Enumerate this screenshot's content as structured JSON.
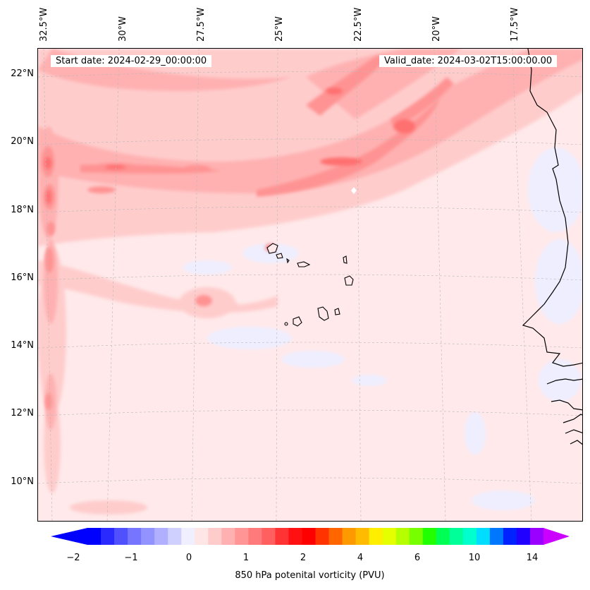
{
  "header": {
    "start_date": "Start date: 2024-02-29_00:00:00",
    "valid_date": "Valid_date: 2024-03-02T15:00:00.00"
  },
  "map": {
    "longitude_labels": [
      "32.5°W",
      "30°W",
      "27.5°W",
      "25°W",
      "22.5°W",
      "20°W",
      "17.5°W"
    ],
    "latitude_labels": [
      "22°N",
      "20°N",
      "18°N",
      "16°N",
      "14°N",
      "12°N",
      "10°N"
    ],
    "background_color": "#ffe9ea"
  },
  "colorbar": {
    "label": "850 hPa potenital vorticity (PVU)",
    "tick_labels": [
      "−2",
      "−1",
      "0",
      "1",
      "2",
      "4",
      "6",
      "10",
      "14"
    ],
    "colors": [
      "#0000ff",
      "#2a2aff",
      "#5050ff",
      "#7575ff",
      "#9393ff",
      "#b0b0ff",
      "#d0d0ff",
      "#efefff",
      "#ffe6e6",
      "#ffcccc",
      "#ffb1b1",
      "#ff9595",
      "#ff7a7a",
      "#ff5f5f",
      "#ff3333",
      "#ff1111",
      "#ff0000",
      "#ff3300",
      "#ff6600",
      "#ff9900",
      "#ffbb00",
      "#ffee00",
      "#e5ff00",
      "#b5ff00",
      "#77ff00",
      "#22ff00",
      "#00ff55",
      "#00ff99",
      "#00ffcc",
      "#00ddff",
      "#0077ff",
      "#0022ff",
      "#2200ff",
      "#9900ff"
    ],
    "extend_low_color": "#0000ff",
    "extend_high_color": "#cc00ff"
  }
}
